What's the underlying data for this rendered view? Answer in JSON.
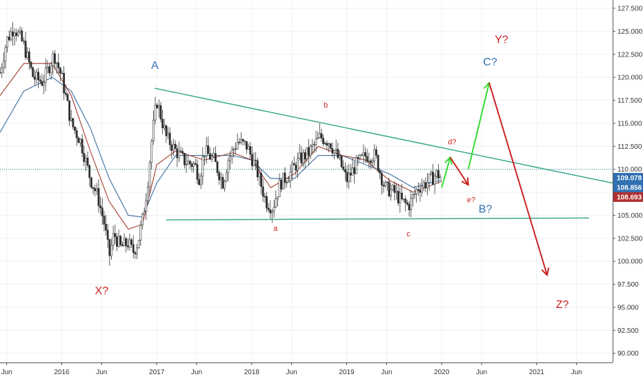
{
  "chart_data": {
    "type": "line",
    "subtype": "candlestick-price-chart-with-elliott-wave-annotations",
    "grid": true,
    "ylim": [
      89.0,
      128.4
    ],
    "xlim": [
      2015.35,
      2021.8
    ],
    "y_ticks": [
      {
        "value": 127.5,
        "label": "127.500"
      },
      {
        "value": 125.0,
        "label": "125.000"
      },
      {
        "value": 122.5,
        "label": "122.500"
      },
      {
        "value": 120.0,
        "label": "120.000"
      },
      {
        "value": 117.5,
        "label": "117.500"
      },
      {
        "value": 115.0,
        "label": "115.000"
      },
      {
        "value": 112.5,
        "label": "112.500"
      },
      {
        "value": 110.0,
        "label": "110.000"
      },
      {
        "value": 107.5,
        "label": "107.500"
      },
      {
        "value": 105.0,
        "label": "105.000"
      },
      {
        "value": 102.5,
        "label": "102.500"
      },
      {
        "value": 100.0,
        "label": "100.000"
      },
      {
        "value": 97.5,
        "label": "97.500"
      },
      {
        "value": 95.0,
        "label": "95.000"
      },
      {
        "value": 92.5,
        "label": "92.500"
      },
      {
        "value": 90.0,
        "label": "90.000"
      }
    ],
    "x_ticks": [
      {
        "value": 2015.42,
        "label": "Jun"
      },
      {
        "value": 2016.0,
        "label": "2016"
      },
      {
        "value": 2016.42,
        "label": "Jun"
      },
      {
        "value": 2017.0,
        "label": "2017"
      },
      {
        "value": 2017.42,
        "label": "Jun"
      },
      {
        "value": 2018.0,
        "label": "2018"
      },
      {
        "value": 2018.42,
        "label": "Jun"
      },
      {
        "value": 2019.0,
        "label": "2019"
      },
      {
        "value": 2019.42,
        "label": "Jun"
      },
      {
        "value": 2020.0,
        "label": "2020"
      },
      {
        "value": 2020.42,
        "label": "Jun"
      },
      {
        "value": 2021.0,
        "label": "2021"
      },
      {
        "value": 2021.42,
        "label": "Jun"
      }
    ],
    "price_path": [
      [
        2015.35,
        120.5
      ],
      [
        2015.42,
        124.0
      ],
      [
        2015.5,
        125.5
      ],
      [
        2015.6,
        123.5
      ],
      [
        2015.7,
        120.0
      ],
      [
        2015.8,
        119.5
      ],
      [
        2015.88,
        121.5
      ],
      [
        2015.92,
        122.5
      ],
      [
        2016.0,
        120.0
      ],
      [
        2016.1,
        115.0
      ],
      [
        2016.2,
        113.0
      ],
      [
        2016.3,
        109.0
      ],
      [
        2016.38,
        107.0
      ],
      [
        2016.45,
        104.0
      ],
      [
        2016.5,
        100.5
      ],
      [
        2016.55,
        103.0
      ],
      [
        2016.62,
        101.5
      ],
      [
        2016.7,
        102.0
      ],
      [
        2016.75,
        101.0
      ],
      [
        2016.8,
        102.0
      ],
      [
        2016.85,
        104.5
      ],
      [
        2016.9,
        108.0
      ],
      [
        2016.95,
        113.5
      ],
      [
        2017.0,
        117.5
      ],
      [
        2017.05,
        115.5
      ],
      [
        2017.1,
        113.5
      ],
      [
        2017.2,
        112.0
      ],
      [
        2017.3,
        110.8
      ],
      [
        2017.4,
        110.5
      ],
      [
        2017.45,
        109.0
      ],
      [
        2017.5,
        112.0
      ],
      [
        2017.6,
        111.0
      ],
      [
        2017.7,
        108.5
      ],
      [
        2017.75,
        111.0
      ],
      [
        2017.85,
        113.0
      ],
      [
        2017.95,
        112.5
      ],
      [
        2018.05,
        110.0
      ],
      [
        2018.15,
        106.5
      ],
      [
        2018.22,
        105.8
      ],
      [
        2018.3,
        108.5
      ],
      [
        2018.4,
        109.5
      ],
      [
        2018.5,
        111.0
      ],
      [
        2018.6,
        111.8
      ],
      [
        2018.72,
        113.5
      ],
      [
        2018.82,
        113.0
      ],
      [
        2018.92,
        111.0
      ],
      [
        2019.0,
        108.8
      ],
      [
        2019.1,
        110.5
      ],
      [
        2019.2,
        111.5
      ],
      [
        2019.3,
        111.5
      ],
      [
        2019.4,
        108.0
      ],
      [
        2019.5,
        107.5
      ],
      [
        2019.58,
        106.5
      ],
      [
        2019.65,
        106.0
      ],
      [
        2019.75,
        108.0
      ],
      [
        2019.85,
        108.6
      ],
      [
        2019.95,
        109.5
      ],
      [
        2020.0,
        109.08
      ]
    ],
    "moving_averages": [
      {
        "color": "#4a78a8",
        "values": [
          [
            2015.35,
            114.0
          ],
          [
            2015.6,
            118.5
          ],
          [
            2015.9,
            120.0
          ],
          [
            2016.1,
            118.5
          ],
          [
            2016.3,
            114.5
          ],
          [
            2016.5,
            109.0
          ],
          [
            2016.7,
            105.0
          ],
          [
            2016.85,
            104.8
          ],
          [
            2017.0,
            108.5
          ],
          [
            2017.2,
            111.5
          ],
          [
            2017.5,
            111.5
          ],
          [
            2017.8,
            111.5
          ],
          [
            2018.0,
            111.0
          ],
          [
            2018.2,
            109.0
          ],
          [
            2018.45,
            109.0
          ],
          [
            2018.7,
            111.5
          ],
          [
            2018.95,
            111.5
          ],
          [
            2019.2,
            110.5
          ],
          [
            2019.45,
            109.5
          ],
          [
            2019.7,
            108.0
          ],
          [
            2020.0,
            108.86
          ]
        ]
      },
      {
        "color": "#a84a3a",
        "values": [
          [
            2015.35,
            118.0
          ],
          [
            2015.6,
            121.5
          ],
          [
            2015.9,
            121.5
          ],
          [
            2016.1,
            118.0
          ],
          [
            2016.3,
            112.0
          ],
          [
            2016.5,
            106.5
          ],
          [
            2016.7,
            103.5
          ],
          [
            2016.85,
            104.0
          ],
          [
            2017.0,
            110.5
          ],
          [
            2017.2,
            112.0
          ],
          [
            2017.5,
            111.0
          ],
          [
            2017.8,
            111.8
          ],
          [
            2018.0,
            111.0
          ],
          [
            2018.2,
            108.0
          ],
          [
            2018.45,
            109.5
          ],
          [
            2018.7,
            112.5
          ],
          [
            2018.95,
            111.5
          ],
          [
            2019.2,
            111.0
          ],
          [
            2019.45,
            108.8
          ],
          [
            2019.7,
            107.5
          ],
          [
            2020.0,
            108.69
          ]
        ]
      }
    ],
    "last_price_line": 110.0,
    "price_labels": [
      {
        "value": 109.078,
        "label": "109.078",
        "color": "#2f6fb2"
      },
      {
        "value": 108.856,
        "label": "108.856",
        "color": "#2f6fb2"
      },
      {
        "value": 108.693,
        "label": "108.693",
        "color": "#b03030"
      }
    ],
    "trendlines": [
      {
        "color": "#3aaa8a",
        "points": [
          [
            2016.98,
            118.8
          ],
          [
            2021.8,
            108.5
          ]
        ]
      },
      {
        "color": "#3aaa8a",
        "points": [
          [
            2017.1,
            104.5
          ],
          [
            2021.55,
            104.7
          ]
        ]
      }
    ],
    "projection_arrows": [
      {
        "color": "#33dd33",
        "points": [
          [
            2020.0,
            108.0
          ],
          [
            2020.09,
            111.3
          ]
        ]
      },
      {
        "color": "#cc2222",
        "points": [
          [
            2020.09,
            111.3
          ],
          [
            2020.28,
            108.3
          ]
        ]
      },
      {
        "color": "#33dd33",
        "points": [
          [
            2020.28,
            110.0
          ],
          [
            2020.5,
            119.4
          ]
        ]
      },
      {
        "color": "#cc2222",
        "points": [
          [
            2020.5,
            119.4
          ],
          [
            2021.11,
            98.5
          ]
        ]
      }
    ],
    "wave_labels": [
      {
        "text": "A",
        "x": 2016.98,
        "y": 120.9,
        "color": "#2f6fb2",
        "size": "large"
      },
      {
        "text": "X?",
        "x": 2016.42,
        "y": 96.4,
        "color": "#cc2222",
        "size": "large"
      },
      {
        "text": "a",
        "x": 2018.25,
        "y": 103.3,
        "color": "#cc2222",
        "size": "small"
      },
      {
        "text": "b",
        "x": 2018.78,
        "y": 116.7,
        "color": "#cc2222",
        "size": "small"
      },
      {
        "text": "c",
        "x": 2019.65,
        "y": 102.7,
        "color": "#cc2222",
        "size": "small"
      },
      {
        "text": "d?",
        "x": 2020.11,
        "y": 112.7,
        "color": "#cc2222",
        "size": "small"
      },
      {
        "text": "e?",
        "x": 2020.31,
        "y": 106.4,
        "color": "#cc2222",
        "size": "small"
      },
      {
        "text": "B?",
        "x": 2020.46,
        "y": 105.3,
        "color": "#2f6fb2",
        "size": "large"
      },
      {
        "text": "C?",
        "x": 2020.51,
        "y": 121.3,
        "color": "#2f6fb2",
        "size": "large"
      },
      {
        "text": "Y?",
        "x": 2020.63,
        "y": 123.7,
        "color": "#cc2222",
        "size": "large"
      },
      {
        "text": "Z?",
        "x": 2021.27,
        "y": 94.9,
        "color": "#cc2222",
        "size": "large"
      }
    ]
  }
}
